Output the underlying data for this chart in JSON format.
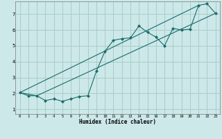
{
  "xlabel": "Humidex (Indice chaleur)",
  "bg_color": "#cce8e8",
  "grid_color": "#aacccc",
  "line_color": "#1a6b6b",
  "xlim": [
    -0.5,
    23.5
  ],
  "ylim": [
    0.7,
    7.8
  ],
  "yticks": [
    1,
    2,
    3,
    4,
    5,
    6,
    7
  ],
  "xticks": [
    0,
    1,
    2,
    3,
    4,
    5,
    6,
    7,
    8,
    9,
    10,
    11,
    12,
    13,
    14,
    15,
    16,
    17,
    18,
    19,
    20,
    21,
    22,
    23
  ],
  "series1_x": [
    0,
    1,
    2,
    3,
    4,
    5,
    6,
    7,
    8,
    9,
    10,
    11,
    12,
    13,
    14,
    15,
    16,
    17,
    18,
    19,
    20,
    21,
    22,
    23
  ],
  "series1_y": [
    2.05,
    1.85,
    1.85,
    1.55,
    1.65,
    1.5,
    1.65,
    1.8,
    1.85,
    3.4,
    4.65,
    5.35,
    5.45,
    5.5,
    6.25,
    5.85,
    5.55,
    5.0,
    6.1,
    6.0,
    6.05,
    7.55,
    7.65,
    7.05
  ],
  "series2_x": [
    0,
    2,
    23
  ],
  "series2_y": [
    2.05,
    1.85,
    7.05
  ],
  "series3_x": [
    0,
    21
  ],
  "series3_y": [
    2.05,
    7.55
  ]
}
